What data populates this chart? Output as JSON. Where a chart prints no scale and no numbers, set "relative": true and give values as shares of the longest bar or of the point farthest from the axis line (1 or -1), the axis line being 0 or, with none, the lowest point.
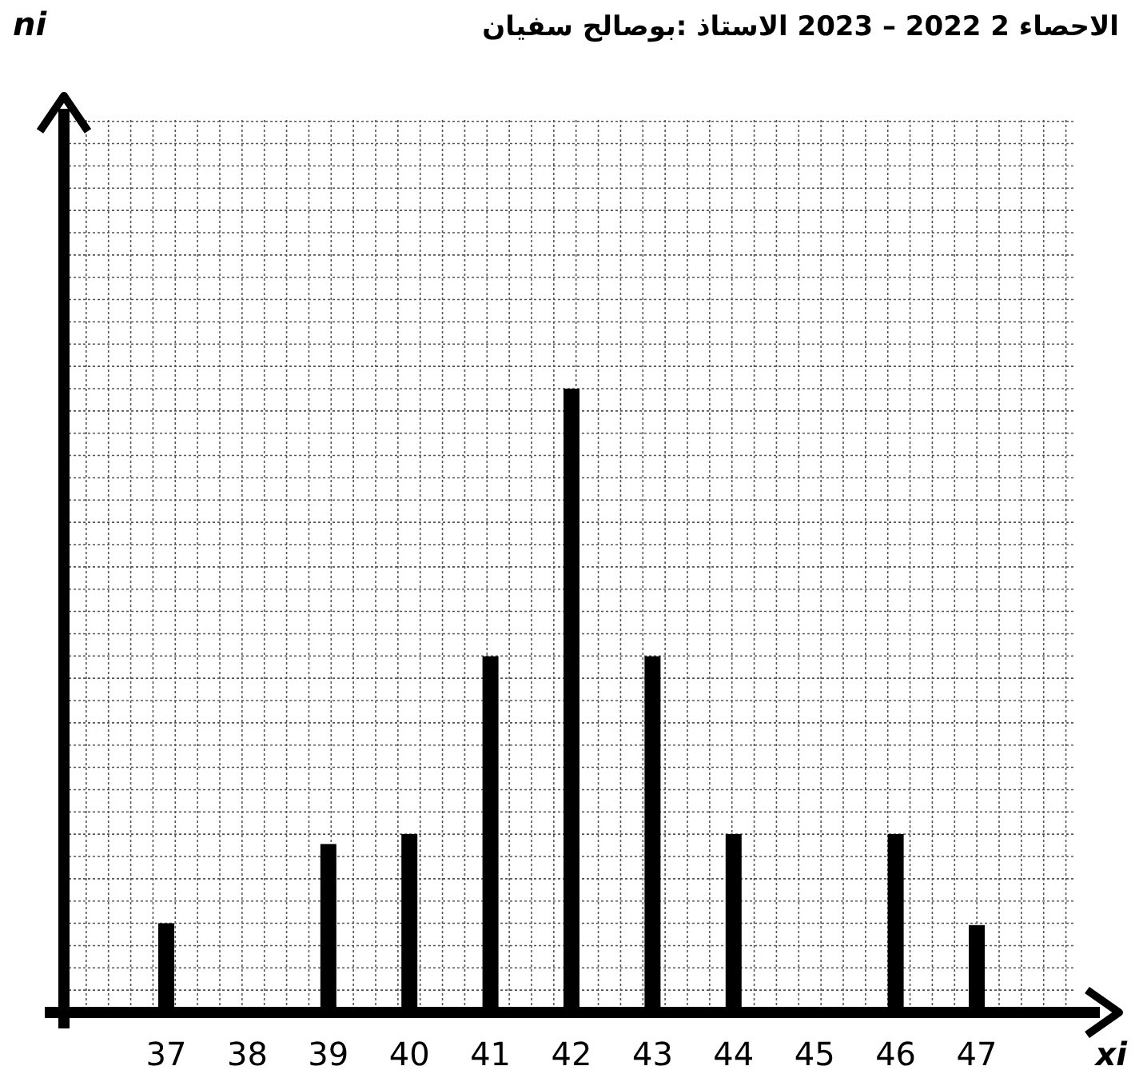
{
  "chart_data": {
    "type": "bar",
    "title": "الاحصاء 2 2022 – 2023 الاستاذ :بوصالح سفيان",
    "xlabel": "xi",
    "annotations": [
      "ni"
    ],
    "categories": [
      "37",
      "38",
      "39",
      "40",
      "41",
      "42",
      "43",
      "44",
      "45",
      "46",
      "47"
    ],
    "values": [
      0.143,
      null,
      0.27,
      0.286,
      0.571,
      1,
      0.571,
      0.286,
      null,
      0.286,
      0.14
    ],
    "relative": true,
    "color": "#000000",
    "grid": true
  }
}
